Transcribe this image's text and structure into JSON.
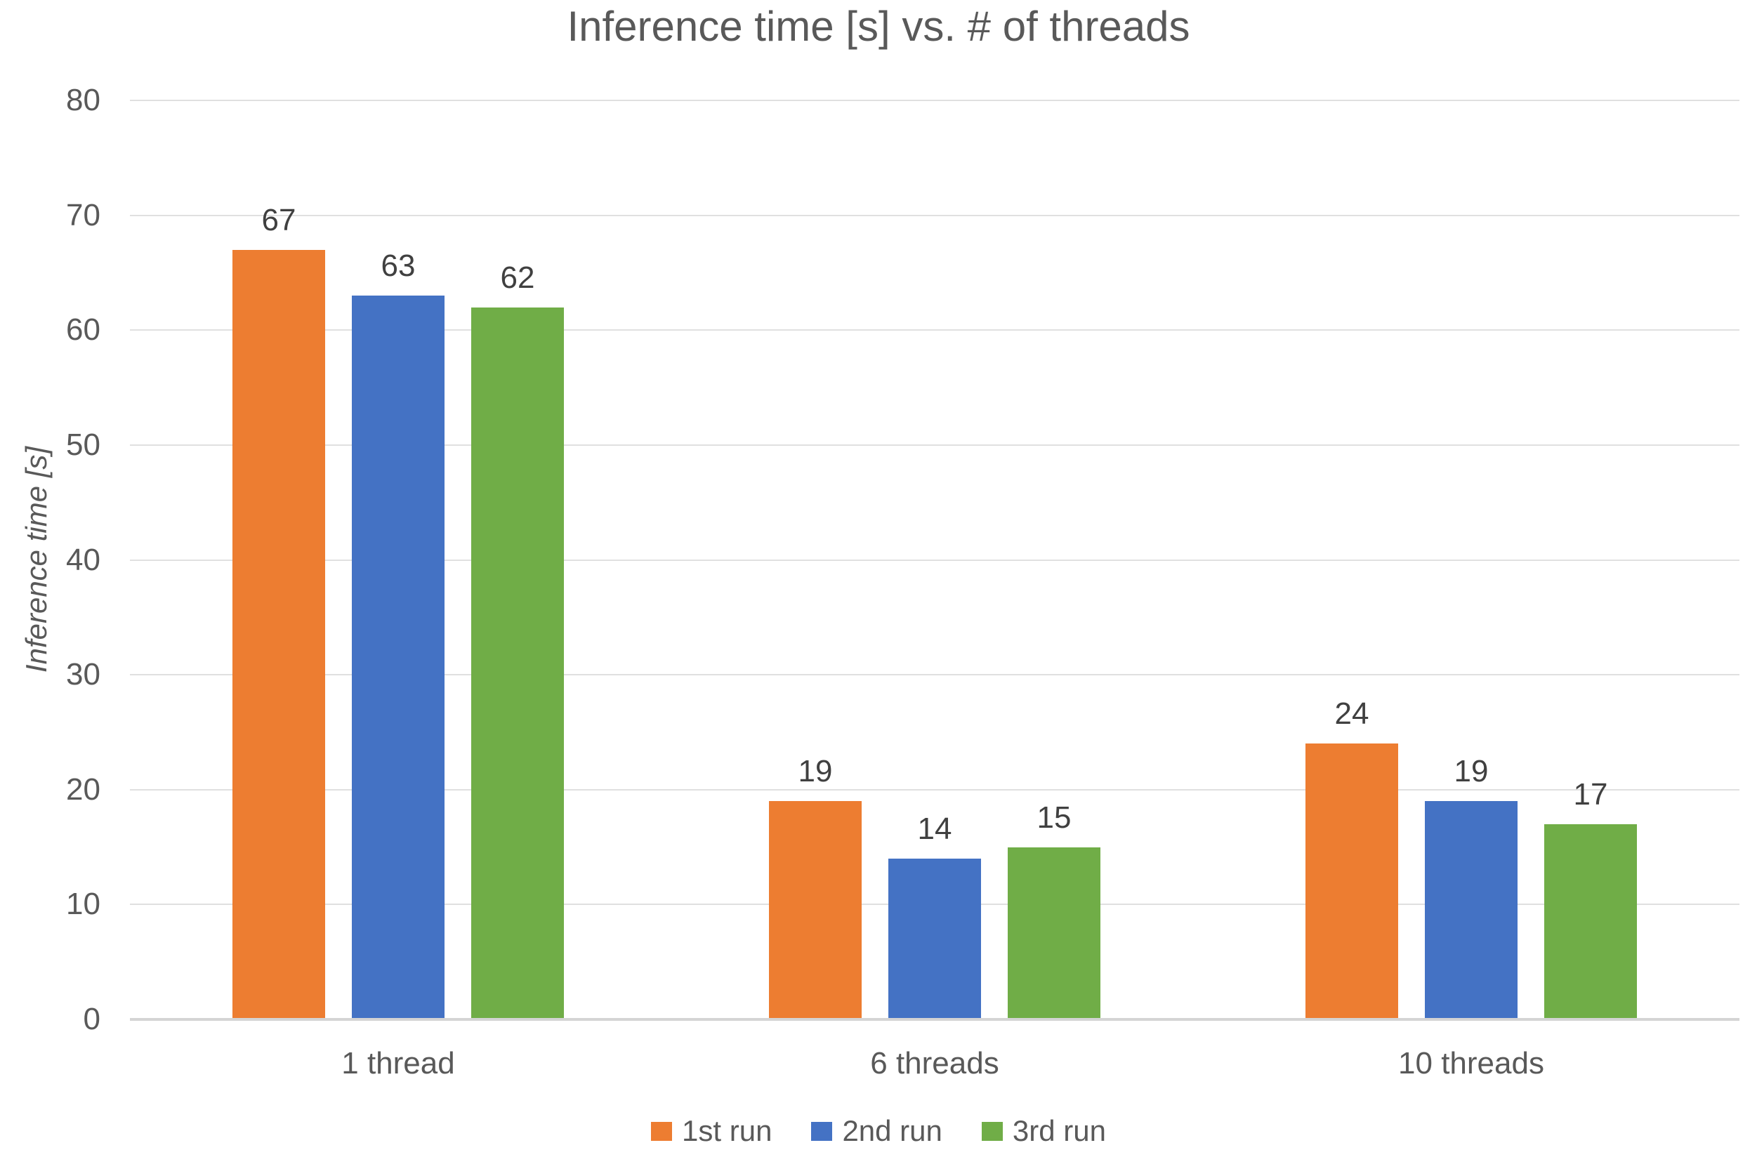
{
  "chart_data": {
    "type": "bar",
    "title": "Inference time [s] vs. # of threads",
    "ylabel": "Inference time [s]",
    "xlabel": "",
    "categories": [
      "1 thread",
      "6 threads",
      "10 threads"
    ],
    "series": [
      {
        "name": "1st run",
        "color": "#ED7D31",
        "values": [
          67,
          19,
          24
        ]
      },
      {
        "name": "2nd run",
        "color": "#4472C4",
        "values": [
          63,
          14,
          19
        ]
      },
      {
        "name": "3rd run",
        "color": "#70AD47",
        "values": [
          62,
          15,
          17
        ]
      }
    ],
    "ylim": [
      0,
      80
    ],
    "yticks": [
      0,
      10,
      20,
      30,
      40,
      50,
      60,
      70,
      80
    ],
    "grid": true,
    "data_labels": true,
    "legend_position": "bottom",
    "colors": {
      "title_text": "#595959",
      "axis_text": "#595959",
      "data_label_text": "#404040",
      "gridline": "#e0e0e0",
      "axis_line": "#d4d4d4"
    }
  }
}
